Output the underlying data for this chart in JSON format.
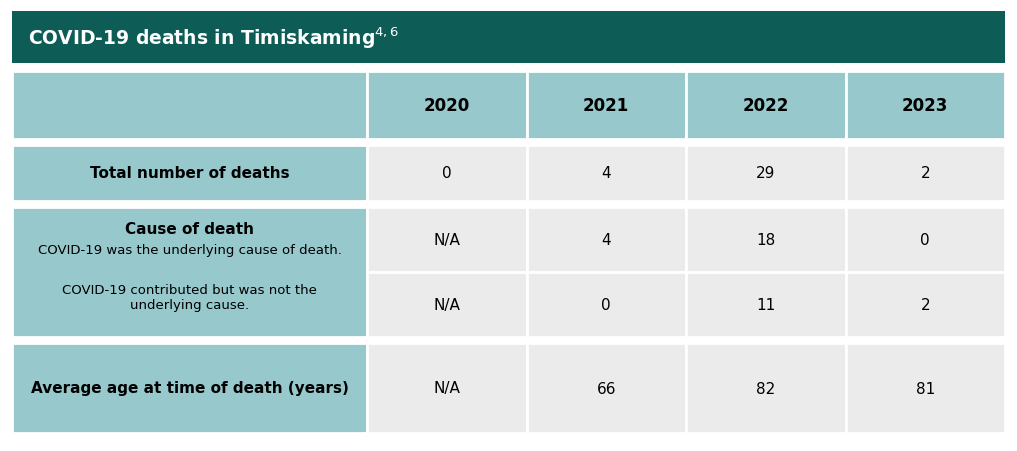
{
  "title": "COVID-19 deaths in Timiskaming",
  "title_superscript": "4,6",
  "title_bg_color": "#0d5c56",
  "title_text_color": "#ffffff",
  "header_bg_color": "#96c8cc",
  "label_col_bg": "#96c8cc",
  "data_bg_light": "#ebebeb",
  "data_bg_dark": "#e0e0e0",
  "border_color": "#ffffff",
  "columns": [
    "2020",
    "2021",
    "2022",
    "2023"
  ],
  "row1_label": "Total number of deaths",
  "row1_values": [
    "0",
    "4",
    "29",
    "2"
  ],
  "cause_header": "Cause of death",
  "cause_sub1": "COVID-19 was the underlying cause of death.",
  "cause_sub2_line1": "COVID-19 contributed but was not the",
  "cause_sub2_line2": "underlying cause.",
  "cause_row1_values": [
    "N/A",
    "4",
    "18",
    "0"
  ],
  "cause_row2_values": [
    "N/A",
    "0",
    "11",
    "2"
  ],
  "age_label": "Average age at time of death (years)",
  "age_values": [
    "N/A",
    "66",
    "82",
    "81"
  ],
  "fig_width": 10.17,
  "fig_height": 4.52,
  "dpi": 100
}
